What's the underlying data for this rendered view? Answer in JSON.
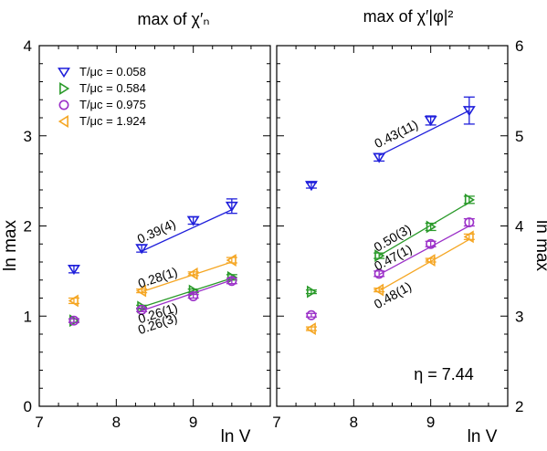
{
  "chart_data": [
    {
      "type": "scatter",
      "title": "max of χ′ₙ",
      "xlabel": "ln V",
      "ylabel": "ln max",
      "xlim": [
        7,
        10
      ],
      "ylim": [
        0,
        4
      ],
      "xticks": [
        "7",
        "8",
        "9"
      ],
      "yticks": [
        "0",
        "1",
        "2",
        "3",
        "4"
      ],
      "yaxis_side": "left",
      "legend": {
        "position": "top-left",
        "entries": [
          {
            "label": "T/μc = 0.058",
            "color": "#1f1fdb",
            "marker": "triangle-down"
          },
          {
            "label": "T/μc = 0.584",
            "color": "#2a9a2a",
            "marker": "triangle-right"
          },
          {
            "label": "T/μc = 0.975",
            "color": "#9b30c8",
            "marker": "circle"
          },
          {
            "label": "T/μc = 1.924",
            "color": "#f5a623",
            "marker": "triangle-left"
          }
        ]
      },
      "series": [
        {
          "name": "T/μc = 0.058",
          "color": "#1f1fdb",
          "marker": "triangle-down",
          "points": [
            {
              "x": 7.45,
              "y": 1.52,
              "err": 0.04
            },
            {
              "x": 8.33,
              "y": 1.75,
              "err": 0.04
            },
            {
              "x": 9.0,
              "y": 2.06,
              "err": 0.04
            },
            {
              "x": 9.5,
              "y": 2.22,
              "err": 0.08
            }
          ],
          "fit": {
            "x": [
              8.33,
              9.5
            ],
            "y": [
              1.72,
              2.18
            ],
            "label": "0.39(4)"
          }
        },
        {
          "name": "T/μc = 0.584",
          "color": "#2a9a2a",
          "marker": "triangle-right",
          "points": [
            {
              "x": 7.45,
              "y": 0.95,
              "err": 0.02
            },
            {
              "x": 8.33,
              "y": 1.1,
              "err": 0.02
            },
            {
              "x": 9.0,
              "y": 1.28,
              "err": 0.02
            },
            {
              "x": 9.5,
              "y": 1.43,
              "err": 0.03
            }
          ],
          "fit": {
            "x": [
              8.33,
              9.5
            ],
            "y": [
              1.1,
              1.42
            ],
            "label": "0.26(1)"
          }
        },
        {
          "name": "T/μc = 0.975",
          "color": "#9b30c8",
          "marker": "circle",
          "points": [
            {
              "x": 7.45,
              "y": 0.95,
              "err": 0.02
            },
            {
              "x": 8.33,
              "y": 1.07,
              "err": 0.02
            },
            {
              "x": 9.0,
              "y": 1.22,
              "err": 0.02
            },
            {
              "x": 9.5,
              "y": 1.39,
              "err": 0.03
            }
          ],
          "fit": {
            "x": [
              8.33,
              9.5
            ],
            "y": [
              1.06,
              1.4
            ],
            "label": "0.26(3)"
          }
        },
        {
          "name": "T/μc = 1.924",
          "color": "#f5a623",
          "marker": "triangle-left",
          "points": [
            {
              "x": 7.45,
              "y": 1.17,
              "err": 0.03
            },
            {
              "x": 8.33,
              "y": 1.28,
              "err": 0.02
            },
            {
              "x": 9.0,
              "y": 1.47,
              "err": 0.02
            },
            {
              "x": 9.5,
              "y": 1.62,
              "err": 0.03
            }
          ],
          "fit": {
            "x": [
              8.33,
              9.5
            ],
            "y": [
              1.27,
              1.6
            ],
            "label": "0.28(1)"
          }
        }
      ]
    },
    {
      "type": "scatter",
      "title": "max of χ′|φ|²",
      "xlabel": "ln V",
      "ylabel": "ln max",
      "xlim": [
        7,
        10
      ],
      "ylim": [
        2,
        6
      ],
      "xticks": [
        "7",
        "8",
        "9"
      ],
      "yticks": [
        "2",
        "3",
        "4",
        "5",
        "6"
      ],
      "yaxis_side": "right",
      "annotation": "η = 7.44",
      "series": [
        {
          "name": "T/μc = 0.058",
          "color": "#1f1fdb",
          "marker": "triangle-down",
          "points": [
            {
              "x": 7.45,
              "y": 4.45,
              "err": 0.03
            },
            {
              "x": 8.33,
              "y": 4.76,
              "err": 0.04
            },
            {
              "x": 9.0,
              "y": 5.17,
              "err": 0.05
            },
            {
              "x": 9.5,
              "y": 5.28,
              "err": 0.15
            }
          ],
          "fit": {
            "x": [
              8.33,
              9.5
            ],
            "y": [
              4.78,
              5.28
            ],
            "label": "0.43(11)"
          }
        },
        {
          "name": "T/μc = 0.584",
          "color": "#2a9a2a",
          "marker": "triangle-right",
          "points": [
            {
              "x": 7.45,
              "y": 3.27,
              "err": 0.02
            },
            {
              "x": 8.33,
              "y": 3.67,
              "err": 0.03
            },
            {
              "x": 9.0,
              "y": 3.99,
              "err": 0.04
            },
            {
              "x": 9.5,
              "y": 4.29,
              "err": 0.04
            }
          ],
          "fit": {
            "x": [
              8.33,
              9.5
            ],
            "y": [
              3.67,
              4.26
            ],
            "label": "0.50(3)"
          }
        },
        {
          "name": "T/μc = 0.975",
          "color": "#9b30c8",
          "marker": "circle",
          "points": [
            {
              "x": 7.45,
              "y": 3.01,
              "err": 0.02
            },
            {
              "x": 8.33,
              "y": 3.47,
              "err": 0.03
            },
            {
              "x": 9.0,
              "y": 3.8,
              "err": 0.03
            },
            {
              "x": 9.5,
              "y": 4.04,
              "err": 0.04
            }
          ],
          "fit": {
            "x": [
              8.33,
              9.5
            ],
            "y": [
              3.46,
              4.0
            ],
            "label": "0.47(1)"
          }
        },
        {
          "name": "T/μc = 1.924",
          "color": "#f5a623",
          "marker": "triangle-left",
          "points": [
            {
              "x": 7.45,
              "y": 2.86,
              "err": 0.02
            },
            {
              "x": 8.33,
              "y": 3.29,
              "err": 0.02
            },
            {
              "x": 9.0,
              "y": 3.62,
              "err": 0.02
            },
            {
              "x": 9.5,
              "y": 3.88,
              "err": 0.03
            }
          ],
          "fit": {
            "x": [
              8.33,
              9.5
            ],
            "y": [
              3.28,
              3.85
            ],
            "label": "0.48(1)"
          }
        }
      ]
    }
  ]
}
